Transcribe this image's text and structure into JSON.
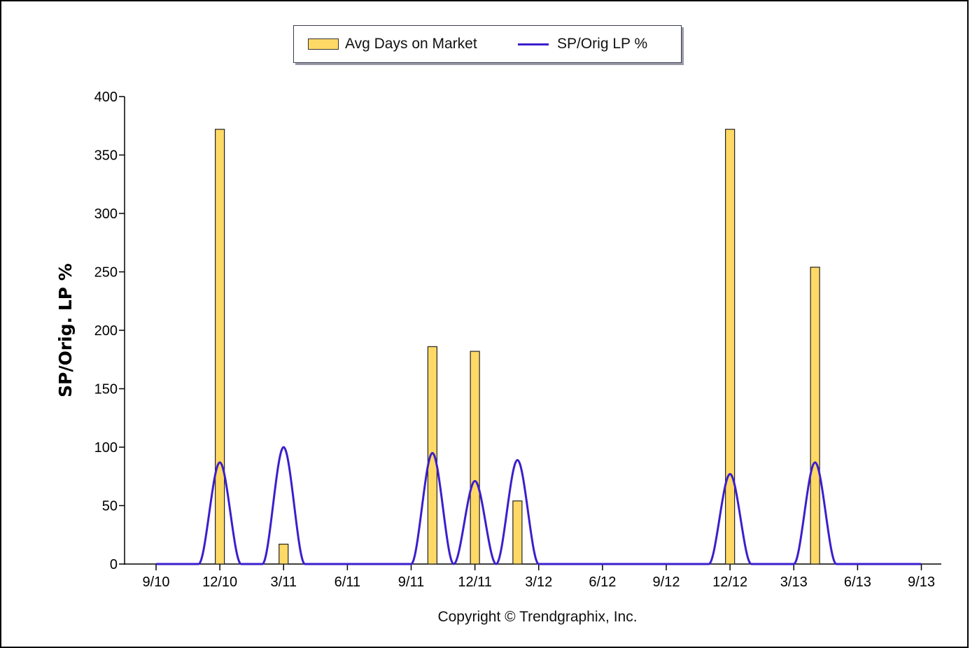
{
  "chart_data": {
    "type": "bar",
    "ylabel": "SP/Orig. LP %",
    "xlabel": "",
    "annotation": "Copyright © Trendgraphix, Inc.",
    "ylim": [
      0,
      400
    ],
    "yticks": [
      0,
      50,
      100,
      150,
      200,
      250,
      300,
      350,
      400
    ],
    "grid": false,
    "legend_position": "top-center",
    "x_tick_labels": [
      "9/10",
      "12/10",
      "3/11",
      "6/11",
      "9/11",
      "12/11",
      "3/12",
      "6/12",
      "9/12",
      "12/12",
      "3/13",
      "6/13",
      "9/13"
    ],
    "categories": [
      "9/10",
      "10/10",
      "11/10",
      "12/10",
      "1/11",
      "2/11",
      "3/11",
      "4/11",
      "5/11",
      "6/11",
      "7/11",
      "8/11",
      "9/11",
      "10/11",
      "11/11",
      "12/11",
      "1/12",
      "2/12",
      "3/12",
      "4/12",
      "5/12",
      "6/12",
      "7/12",
      "8/12",
      "9/12",
      "10/12",
      "11/12",
      "12/12",
      "1/13",
      "2/13",
      "3/13",
      "4/13",
      "5/13",
      "6/13",
      "7/13",
      "8/13",
      "9/13"
    ],
    "series": [
      {
        "name": "Avg Days on Market",
        "type": "bar",
        "color": "#ffd966",
        "values": [
          0,
          0,
          0,
          372,
          0,
          0,
          17,
          0,
          0,
          0,
          0,
          0,
          0,
          186,
          0,
          182,
          0,
          54,
          0,
          0,
          0,
          0,
          0,
          0,
          0,
          0,
          0,
          372,
          0,
          0,
          0,
          254,
          0,
          0,
          0,
          0,
          0
        ]
      },
      {
        "name": "SP/Orig LP %",
        "type": "line",
        "color": "#3b1fcc",
        "values": [
          0,
          0,
          0,
          87,
          0,
          0,
          100,
          0,
          0,
          0,
          0,
          0,
          0,
          95,
          0,
          71,
          0,
          89,
          0,
          0,
          0,
          0,
          0,
          0,
          0,
          0,
          0,
          77,
          0,
          0,
          0,
          87,
          0,
          0,
          0,
          0,
          0
        ]
      }
    ]
  }
}
